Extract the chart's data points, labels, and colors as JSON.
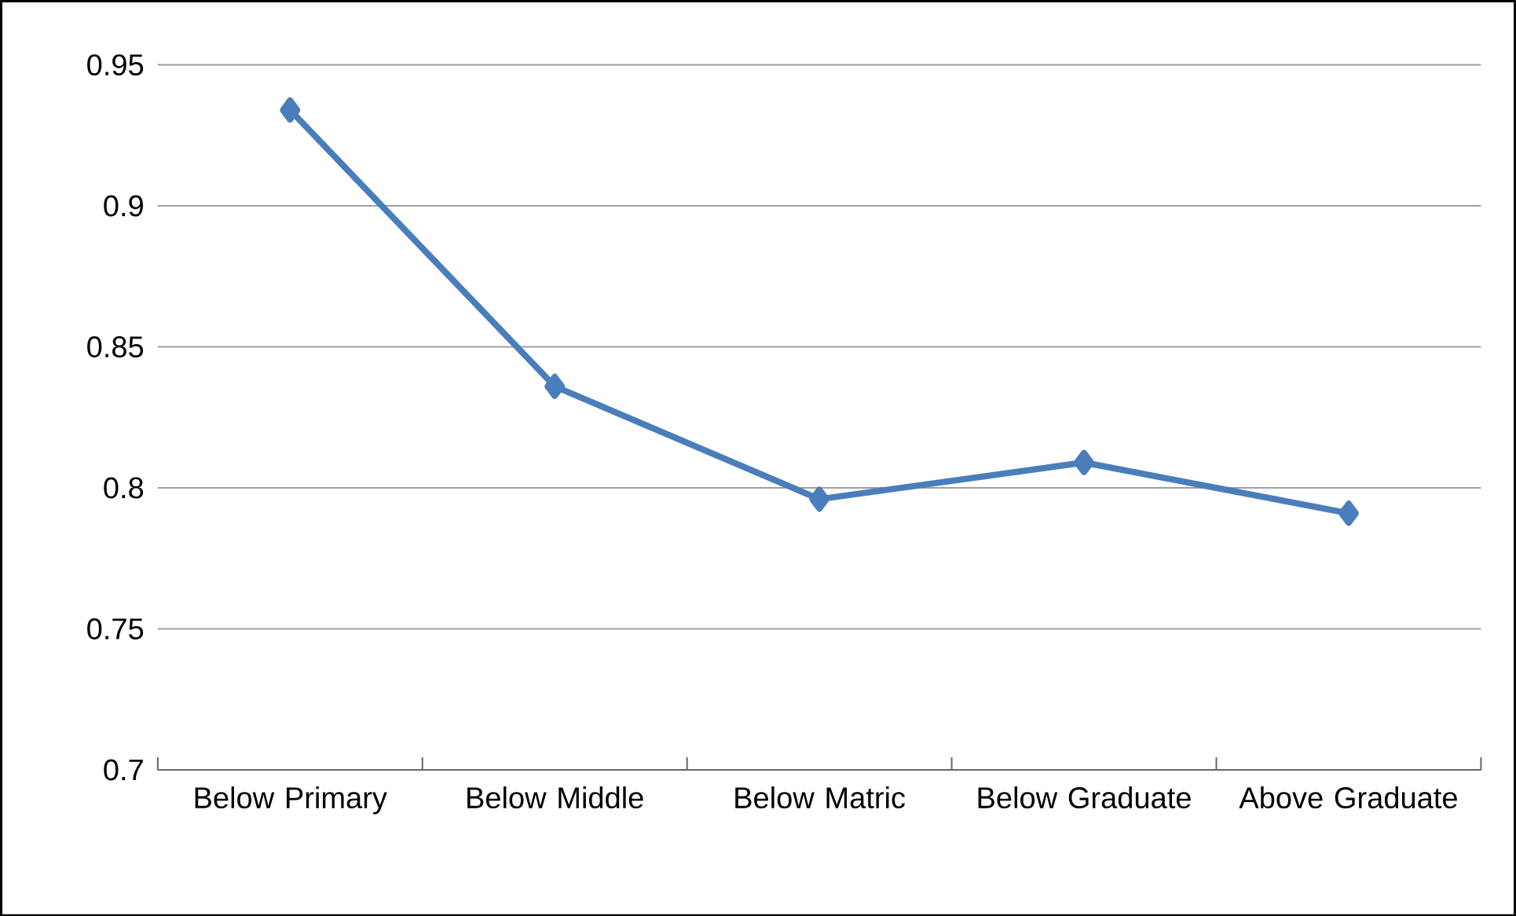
{
  "chart_data": {
    "type": "line",
    "categories": [
      "Below Primary",
      "Below Middle",
      "Below Matric",
      "Below Graduate",
      "Above Graduate"
    ],
    "series": [
      {
        "color": "#4a7ebb",
        "values": [
          0.934,
          0.836,
          0.796,
          0.809,
          0.791
        ]
      }
    ],
    "ylim": [
      0.7,
      0.95
    ],
    "yticks": [
      0.7,
      0.75,
      0.8,
      0.85,
      0.9,
      0.95
    ],
    "grid": "y",
    "marker": "diamond",
    "line_style": "solid"
  }
}
